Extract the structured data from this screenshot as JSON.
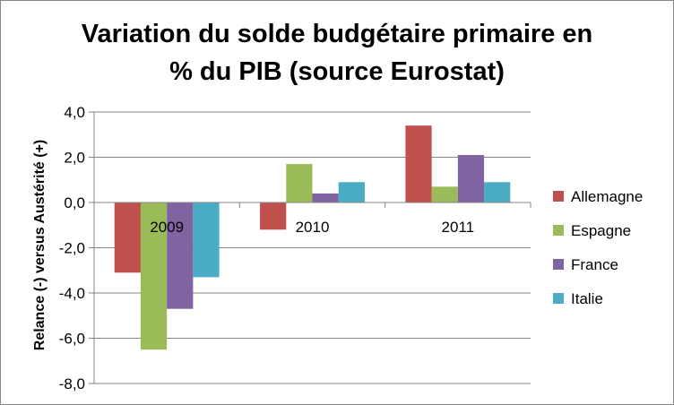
{
  "chart_data": {
    "type": "bar",
    "title_line1": "Variation du solde budgétaire primaire en",
    "title_line2": "% du PIB (source Eurostat)",
    "xlabel": "",
    "ylabel": "Relance (-) versus Austérité (+)",
    "ylim": [
      -8,
      4
    ],
    "yticks": [
      "4,0",
      "2,0",
      "0,0",
      "-2,0",
      "-4,0",
      "-6,0",
      "-8,0"
    ],
    "ytick_values": [
      4,
      2,
      0,
      -2,
      -4,
      -6,
      -8
    ],
    "categories": [
      "2009",
      "2010",
      "2011"
    ],
    "series": [
      {
        "name": "Allemagne",
        "color": "#C0504D",
        "values": [
          -3.1,
          -1.2,
          3.4
        ]
      },
      {
        "name": "Espagne",
        "color": "#9BBB59",
        "values": [
          -6.5,
          1.7,
          0.7
        ]
      },
      {
        "name": "France",
        "color": "#8064A2",
        "values": [
          -4.7,
          0.4,
          2.1
        ]
      },
      {
        "name": "Italie",
        "color": "#4BACC6",
        "values": [
          -3.3,
          0.9,
          0.9
        ]
      }
    ],
    "grid": true,
    "legend_position": "right"
  }
}
